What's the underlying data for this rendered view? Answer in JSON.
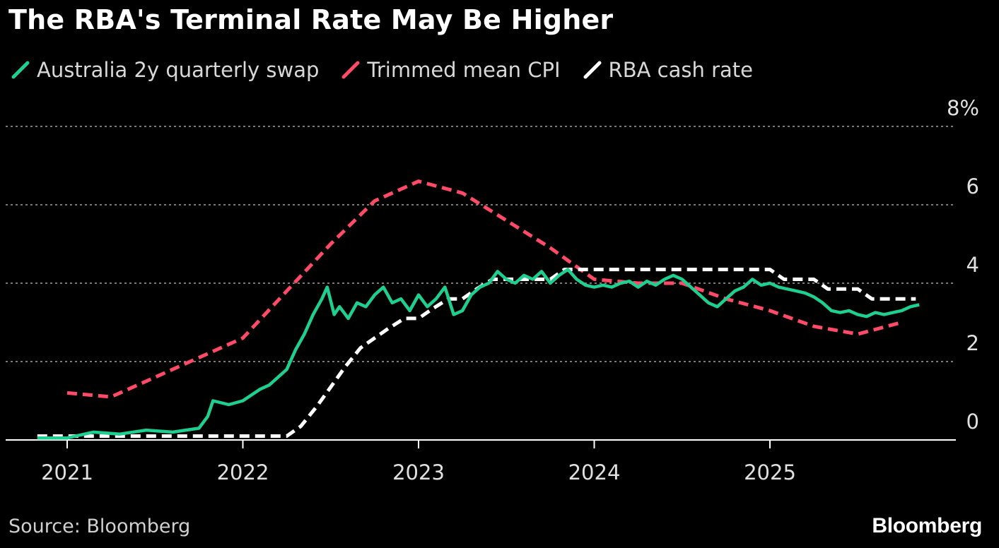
{
  "colors": {
    "swap": "#1ecf8f",
    "cpi": "#ff4a68",
    "cash": "#ffffff",
    "grid": "#7a7a7a",
    "axis": "#ffffff",
    "background": "#000000"
  },
  "source": "Source: Bloomberg",
  "brand": "Bloomberg",
  "chart_data": {
    "type": "line",
    "title": "The RBA's Terminal Rate May Be Higher",
    "xlabel": "",
    "ylabel": "",
    "y_unit": "%",
    "ylim": [
      0,
      8
    ],
    "y_ticks": [
      0,
      2,
      4,
      6,
      8
    ],
    "y_tick_labels": [
      "0",
      "2",
      "4",
      "6",
      "8%"
    ],
    "x_ticks": [
      2021,
      2022,
      2023,
      2024,
      2025
    ],
    "x_tick_labels": [
      "2021",
      "2022",
      "2023",
      "2024",
      "2025"
    ],
    "xlim": [
      2020.8,
      2026.0
    ],
    "grid": true,
    "legend_position": "top-left",
    "series": [
      {
        "name": "Australia 2y quarterly swap",
        "color": "#1ecf8f",
        "style": "solid",
        "x": [
          2020.83,
          2021.0,
          2021.15,
          2021.3,
          2021.45,
          2021.6,
          2021.75,
          2021.8,
          2021.83,
          2021.92,
          2022.0,
          2022.1,
          2022.15,
          2022.25,
          2022.3,
          2022.35,
          2022.4,
          2022.45,
          2022.48,
          2022.52,
          2022.55,
          2022.6,
          2022.65,
          2022.7,
          2022.75,
          2022.8,
          2022.85,
          2022.9,
          2022.95,
          2023.0,
          2023.05,
          2023.1,
          2023.15,
          2023.2,
          2023.25,
          2023.3,
          2023.35,
          2023.4,
          2023.45,
          2023.5,
          2023.55,
          2023.6,
          2023.65,
          2023.7,
          2023.75,
          2023.8,
          2023.85,
          2023.9,
          2023.95,
          2024.0,
          2024.05,
          2024.1,
          2024.15,
          2024.2,
          2024.25,
          2024.3,
          2024.35,
          2024.4,
          2024.45,
          2024.5,
          2024.55,
          2024.6,
          2024.65,
          2024.7,
          2024.75,
          2024.8,
          2024.85,
          2024.9,
          2024.95,
          2025.0,
          2025.05,
          2025.1,
          2025.15,
          2025.2,
          2025.25,
          2025.3,
          2025.35,
          2025.4,
          2025.45,
          2025.5,
          2025.55,
          2025.6,
          2025.65,
          2025.7,
          2025.75,
          2025.8,
          2025.85
        ],
        "y": [
          0.05,
          0.05,
          0.2,
          0.15,
          0.25,
          0.2,
          0.3,
          0.6,
          1.0,
          0.9,
          1.0,
          1.3,
          1.4,
          1.8,
          2.3,
          2.7,
          3.2,
          3.6,
          3.9,
          3.2,
          3.4,
          3.1,
          3.5,
          3.4,
          3.7,
          3.9,
          3.5,
          3.6,
          3.3,
          3.7,
          3.4,
          3.6,
          3.9,
          3.2,
          3.3,
          3.7,
          3.9,
          4.0,
          4.3,
          4.1,
          4.0,
          4.2,
          4.1,
          4.3,
          4.0,
          4.2,
          4.35,
          4.1,
          3.95,
          3.9,
          3.95,
          3.9,
          4.0,
          4.05,
          3.9,
          4.05,
          3.95,
          4.1,
          4.2,
          4.1,
          3.9,
          3.7,
          3.5,
          3.4,
          3.6,
          3.8,
          3.9,
          4.1,
          3.95,
          4.0,
          3.9,
          3.85,
          3.8,
          3.75,
          3.65,
          3.5,
          3.3,
          3.25,
          3.3,
          3.2,
          3.15,
          3.25,
          3.2,
          3.25,
          3.3,
          3.4,
          3.45
        ]
      },
      {
        "name": "Trimmed mean CPI",
        "color": "#ff4a68",
        "style": "dashed",
        "x": [
          2021.0,
          2021.25,
          2021.5,
          2021.75,
          2022.0,
          2022.25,
          2022.5,
          2022.75,
          2023.0,
          2023.25,
          2023.5,
          2023.75,
          2024.0,
          2024.25,
          2024.5,
          2024.75,
          2025.0,
          2025.25,
          2025.5,
          2025.75
        ],
        "y": [
          1.2,
          1.1,
          1.6,
          2.1,
          2.6,
          3.8,
          5.0,
          6.1,
          6.6,
          6.3,
          5.6,
          4.9,
          4.1,
          4.0,
          4.0,
          3.6,
          3.3,
          2.9,
          2.7,
          3.0
        ]
      },
      {
        "name": "RBA cash rate",
        "color": "#ffffff",
        "style": "dashed",
        "x": [
          2020.83,
          2022.25,
          2022.33,
          2022.42,
          2022.5,
          2022.58,
          2022.67,
          2022.75,
          2022.83,
          2022.92,
          2023.0,
          2023.08,
          2023.17,
          2023.25,
          2023.33,
          2023.42,
          2023.5,
          2023.58,
          2023.67,
          2023.75,
          2023.83,
          2023.92,
          2024.0,
          2024.25,
          2024.5,
          2024.75,
          2024.92,
          2025.0,
          2025.08,
          2025.17,
          2025.25,
          2025.33,
          2025.42,
          2025.5,
          2025.58,
          2025.67,
          2025.75,
          2025.83
        ],
        "y": [
          0.1,
          0.1,
          0.35,
          0.85,
          1.35,
          1.85,
          2.35,
          2.6,
          2.85,
          3.1,
          3.1,
          3.35,
          3.6,
          3.6,
          3.85,
          4.1,
          4.1,
          4.1,
          4.1,
          4.1,
          4.35,
          4.35,
          4.35,
          4.35,
          4.35,
          4.35,
          4.35,
          4.35,
          4.1,
          4.1,
          4.1,
          3.85,
          3.85,
          3.85,
          3.6,
          3.6,
          3.6,
          3.6
        ]
      }
    ]
  }
}
